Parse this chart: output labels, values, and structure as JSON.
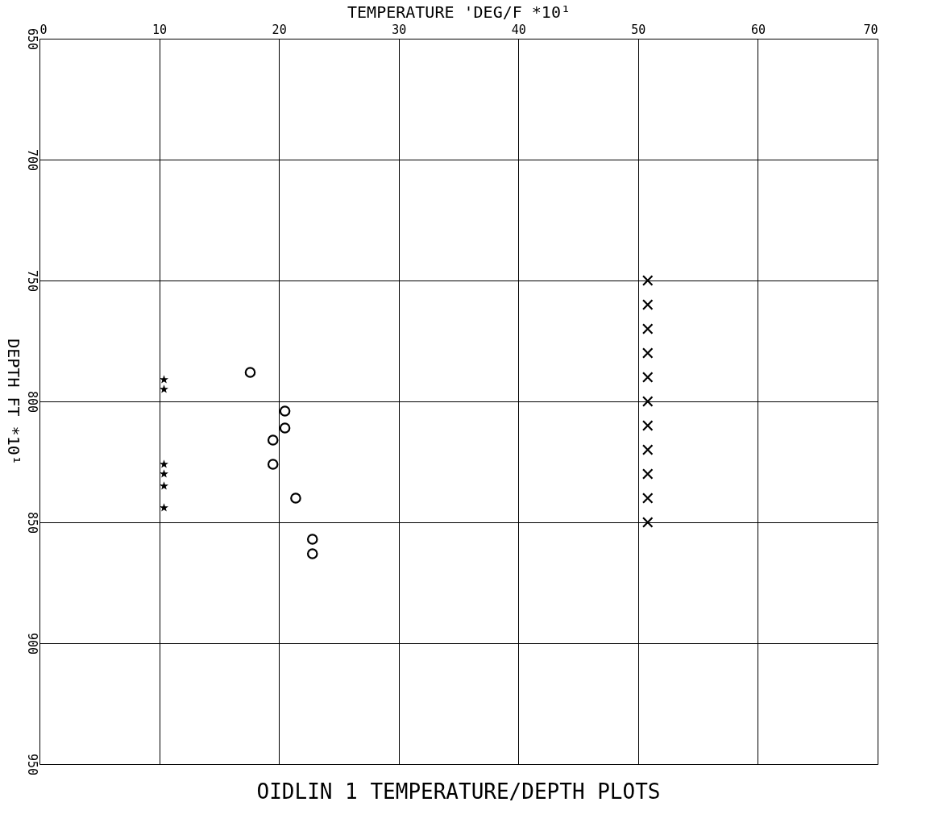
{
  "chart_data": {
    "type": "scatter",
    "title": "OIDLIN 1 TEMPERATURE/DEPTH PLOTS",
    "xlabel": "TEMPERATURE 'DEG/F *10¹",
    "ylabel": "DEPTH FT *10¹",
    "xlim": [
      0,
      70
    ],
    "xticks": [
      0,
      10,
      20,
      30,
      40,
      50,
      60,
      70
    ],
    "ylim": [
      950,
      650
    ],
    "yticks": [
      650,
      700,
      750,
      800,
      850,
      900,
      950
    ],
    "grid": true,
    "series": [
      {
        "color": "#000000",
        "marker": "star",
        "x": [
          10.4,
          10.4,
          10.4,
          10.4,
          10.4,
          10.4
        ],
        "values": [
          791,
          795,
          826,
          830,
          835,
          844
        ]
      },
      {
        "color": "#000000",
        "marker": "circle",
        "x": [
          17.6,
          20.5,
          20.5,
          19.5,
          19.5,
          21.4,
          22.8,
          22.8
        ],
        "values": [
          788,
          804,
          811,
          816,
          826,
          840,
          857,
          863
        ]
      },
      {
        "color": "#000000",
        "marker": "cross",
        "x": [
          50.8,
          50.8,
          50.8,
          50.8,
          50.8,
          50.8,
          50.8,
          50.8,
          50.8,
          50.8,
          50.8
        ],
        "values": [
          750,
          760,
          770,
          780,
          790,
          800,
          810,
          820,
          830,
          840,
          850
        ]
      }
    ]
  }
}
